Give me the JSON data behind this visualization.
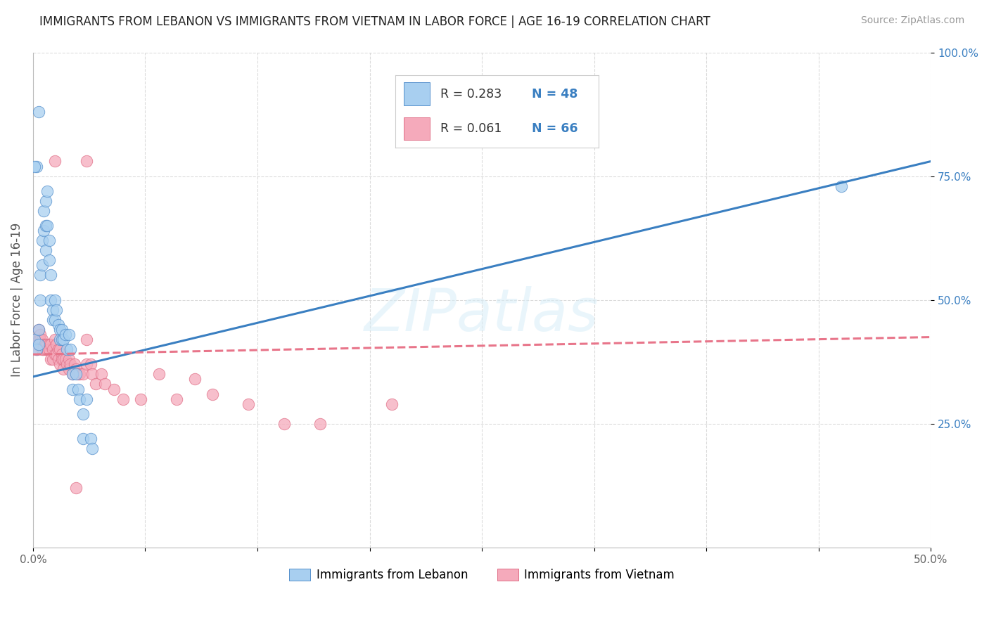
{
  "title": "IMMIGRANTS FROM LEBANON VS IMMIGRANTS FROM VIETNAM IN LABOR FORCE | AGE 16-19 CORRELATION CHART",
  "source": "Source: ZipAtlas.com",
  "ylabel": "In Labor Force | Age 16-19",
  "xlim": [
    0.0,
    0.5
  ],
  "ylim": [
    0.0,
    1.0
  ],
  "xticks": [
    0.0,
    0.0625,
    0.125,
    0.1875,
    0.25,
    0.3125,
    0.375,
    0.4375,
    0.5
  ],
  "xtick_labels_show": {
    "0.0": "0.0%",
    "0.50": "50.0%"
  },
  "yticks": [
    0.25,
    0.5,
    0.75,
    1.0
  ],
  "yticklabels": [
    "25.0%",
    "50.0%",
    "75.0%",
    "100.0%"
  ],
  "color_blue": "#A8CFF0",
  "color_pink": "#F5AABB",
  "color_blue_edge": "#5590CC",
  "color_pink_edge": "#E07088",
  "color_blue_line": "#3A7FC1",
  "color_pink_line": "#E8758A",
  "color_blue_text": "#3A7FC1",
  "color_grid": "#CCCCCC",
  "watermark": "ZIPatlas",
  "blue_points": [
    [
      0.001,
      0.42
    ],
    [
      0.002,
      0.4
    ],
    [
      0.002,
      0.77
    ],
    [
      0.003,
      0.44
    ],
    [
      0.003,
      0.41
    ],
    [
      0.004,
      0.55
    ],
    [
      0.004,
      0.5
    ],
    [
      0.005,
      0.62
    ],
    [
      0.005,
      0.57
    ],
    [
      0.006,
      0.68
    ],
    [
      0.006,
      0.64
    ],
    [
      0.007,
      0.7
    ],
    [
      0.007,
      0.65
    ],
    [
      0.007,
      0.6
    ],
    [
      0.008,
      0.72
    ],
    [
      0.008,
      0.65
    ],
    [
      0.009,
      0.62
    ],
    [
      0.009,
      0.58
    ],
    [
      0.01,
      0.55
    ],
    [
      0.01,
      0.5
    ],
    [
      0.011,
      0.48
    ],
    [
      0.011,
      0.46
    ],
    [
      0.012,
      0.5
    ],
    [
      0.012,
      0.46
    ],
    [
      0.013,
      0.48
    ],
    [
      0.014,
      0.45
    ],
    [
      0.015,
      0.44
    ],
    [
      0.015,
      0.42
    ],
    [
      0.016,
      0.44
    ],
    [
      0.016,
      0.42
    ],
    [
      0.017,
      0.42
    ],
    [
      0.018,
      0.43
    ],
    [
      0.019,
      0.4
    ],
    [
      0.02,
      0.43
    ],
    [
      0.021,
      0.4
    ],
    [
      0.022,
      0.35
    ],
    [
      0.022,
      0.32
    ],
    [
      0.024,
      0.35
    ],
    [
      0.025,
      0.32
    ],
    [
      0.026,
      0.3
    ],
    [
      0.028,
      0.27
    ],
    [
      0.028,
      0.22
    ],
    [
      0.03,
      0.3
    ],
    [
      0.032,
      0.22
    ],
    [
      0.033,
      0.2
    ],
    [
      0.003,
      0.88
    ],
    [
      0.001,
      0.77
    ],
    [
      0.45,
      0.73
    ]
  ],
  "pink_points": [
    [
      0.001,
      0.42
    ],
    [
      0.002,
      0.41
    ],
    [
      0.002,
      0.4
    ],
    [
      0.003,
      0.44
    ],
    [
      0.003,
      0.42
    ],
    [
      0.004,
      0.43
    ],
    [
      0.004,
      0.42
    ],
    [
      0.005,
      0.41
    ],
    [
      0.005,
      0.42
    ],
    [
      0.005,
      0.4
    ],
    [
      0.006,
      0.41
    ],
    [
      0.006,
      0.4
    ],
    [
      0.007,
      0.41
    ],
    [
      0.007,
      0.4
    ],
    [
      0.008,
      0.41
    ],
    [
      0.008,
      0.4
    ],
    [
      0.009,
      0.41
    ],
    [
      0.009,
      0.4
    ],
    [
      0.01,
      0.41
    ],
    [
      0.01,
      0.38
    ],
    [
      0.011,
      0.4
    ],
    [
      0.011,
      0.38
    ],
    [
      0.012,
      0.42
    ],
    [
      0.012,
      0.39
    ],
    [
      0.013,
      0.41
    ],
    [
      0.013,
      0.39
    ],
    [
      0.014,
      0.4
    ],
    [
      0.014,
      0.38
    ],
    [
      0.015,
      0.4
    ],
    [
      0.015,
      0.37
    ],
    [
      0.016,
      0.39
    ],
    [
      0.016,
      0.38
    ],
    [
      0.017,
      0.38
    ],
    [
      0.017,
      0.36
    ],
    [
      0.018,
      0.38
    ],
    [
      0.019,
      0.37
    ],
    [
      0.02,
      0.38
    ],
    [
      0.02,
      0.36
    ],
    [
      0.021,
      0.37
    ],
    [
      0.022,
      0.35
    ],
    [
      0.023,
      0.37
    ],
    [
      0.024,
      0.36
    ],
    [
      0.025,
      0.35
    ],
    [
      0.026,
      0.35
    ],
    [
      0.028,
      0.35
    ],
    [
      0.03,
      0.42
    ],
    [
      0.03,
      0.37
    ],
    [
      0.032,
      0.37
    ],
    [
      0.033,
      0.35
    ],
    [
      0.035,
      0.33
    ],
    [
      0.038,
      0.35
    ],
    [
      0.04,
      0.33
    ],
    [
      0.045,
      0.32
    ],
    [
      0.05,
      0.3
    ],
    [
      0.06,
      0.3
    ],
    [
      0.07,
      0.35
    ],
    [
      0.08,
      0.3
    ],
    [
      0.09,
      0.34
    ],
    [
      0.1,
      0.31
    ],
    [
      0.12,
      0.29
    ],
    [
      0.14,
      0.25
    ],
    [
      0.16,
      0.25
    ],
    [
      0.2,
      0.29
    ],
    [
      0.012,
      0.78
    ],
    [
      0.03,
      0.78
    ],
    [
      0.024,
      0.12
    ]
  ],
  "blue_line": [
    0.0,
    0.345,
    0.5,
    0.78
  ],
  "pink_line": [
    0.0,
    0.39,
    0.5,
    0.425
  ]
}
